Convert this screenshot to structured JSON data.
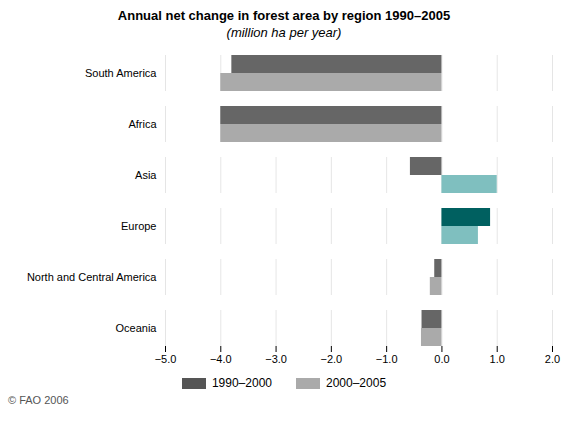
{
  "chart_data": {
    "type": "bar",
    "orientation": "horizontal",
    "title": "Annual net change in forest area by region 1990–2005",
    "subtitle": "(million ha per year)",
    "caption": "© FAO 2006",
    "categories": [
      "South America",
      "Africa",
      "Asia",
      "Europe",
      "North and Central America",
      "Oceania"
    ],
    "series": [
      {
        "name": "1990–2000",
        "color": "#555555",
        "colors": [
          "#666666",
          "#666666",
          "#666666",
          "#006060",
          "#666666",
          "#666666"
        ],
        "values": [
          -3.8,
          -4.0,
          -0.57,
          0.88,
          -0.13,
          -0.36
        ]
      },
      {
        "name": "2000–2005",
        "color": "#aaaaaa",
        "colors": [
          "#aaaaaa",
          "#aaaaaa",
          "#7fbfbf",
          "#7fbfbf",
          "#aaaaaa",
          "#aaaaaa"
        ],
        "values": [
          -4.0,
          -4.0,
          1.0,
          0.66,
          -0.21,
          -0.37
        ]
      }
    ],
    "xlim": [
      -5,
      2
    ],
    "xticks": [
      -5,
      -4,
      -3,
      -2,
      -1,
      0,
      1,
      2
    ],
    "grid": true,
    "legend": "bottom"
  }
}
